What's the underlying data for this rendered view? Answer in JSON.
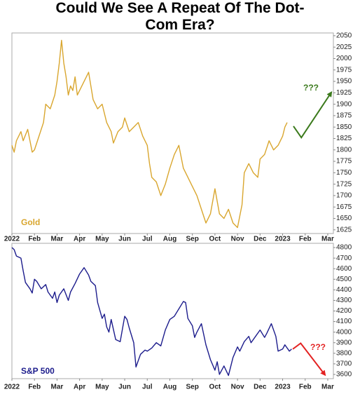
{
  "chart_data": [
    {
      "type": "line",
      "title": "Could We See A Repeat Of The Dot-Com Era?",
      "x": [
        0,
        0.1,
        0.2,
        0.4,
        0.5,
        0.7,
        0.9,
        1.0,
        1.2,
        1.4,
        1.5,
        1.7,
        1.9,
        2.0,
        2.1,
        2.2,
        2.3,
        2.4,
        2.5,
        2.6,
        2.7,
        2.8,
        2.9,
        3.0,
        3.2,
        3.4,
        3.6,
        3.8,
        4.0,
        4.2,
        4.4,
        4.5,
        4.7,
        4.9,
        5.0,
        5.2,
        5.4,
        5.6,
        5.8,
        6.0,
        6.1,
        6.2,
        6.4,
        6.6,
        6.8,
        7.0,
        7.2,
        7.4,
        7.6,
        7.8,
        8.0,
        8.2,
        8.4,
        8.6,
        8.8,
        9.0,
        9.2,
        9.4,
        9.6,
        9.8,
        10.0,
        10.2,
        10.3,
        10.5,
        10.7,
        10.9,
        11.0,
        11.2,
        11.4,
        11.6,
        11.8,
        12.0,
        12.1,
        12.2
      ],
      "series": [
        {
          "name": "Gold",
          "color": "#d9a62e",
          "values": [
            1810,
            1795,
            1820,
            1840,
            1820,
            1845,
            1795,
            1800,
            1830,
            1860,
            1900,
            1890,
            1920,
            1950,
            1990,
            2040,
            1990,
            1960,
            1920,
            1940,
            1930,
            1960,
            1920,
            1930,
            1950,
            1970,
            1910,
            1890,
            1900,
            1860,
            1840,
            1815,
            1840,
            1850,
            1870,
            1840,
            1850,
            1860,
            1830,
            1810,
            1770,
            1740,
            1730,
            1700,
            1725,
            1760,
            1790,
            1810,
            1760,
            1740,
            1720,
            1700,
            1670,
            1640,
            1660,
            1715,
            1660,
            1650,
            1670,
            1640,
            1630,
            1680,
            1750,
            1770,
            1750,
            1740,
            1780,
            1790,
            1820,
            1800,
            1810,
            1830,
            1850,
            1860
          ]
        }
      ],
      "projection": {
        "label": "???",
        "color": "#3b7a1c",
        "x": [
          12.48,
          12.83,
          14.16
        ],
        "values": [
          1852,
          1827,
          1926
        ]
      },
      "xlim": [
        0,
        14.25
      ],
      "ylim": [
        1617,
        2056
      ],
      "xticks": [
        {
          "value": 0,
          "label": "2022"
        },
        {
          "value": 1,
          "label": "Feb"
        },
        {
          "value": 2,
          "label": "Mar"
        },
        {
          "value": 3,
          "label": "Apr"
        },
        {
          "value": 4,
          "label": "May"
        },
        {
          "value": 5,
          "label": "Jun"
        },
        {
          "value": 6,
          "label": "Jul"
        },
        {
          "value": 7,
          "label": "Aug"
        },
        {
          "value": 8,
          "label": "Sep"
        },
        {
          "value": 9,
          "label": "Oct"
        },
        {
          "value": 10,
          "label": "Nov"
        },
        {
          "value": 11,
          "label": "Dec"
        },
        {
          "value": 12,
          "label": "2023"
        },
        {
          "value": 13,
          "label": "Feb"
        },
        {
          "value": 14,
          "label": "Mar"
        }
      ],
      "yticks": [
        1625,
        1650,
        1675,
        1700,
        1725,
        1750,
        1775,
        1800,
        1825,
        1850,
        1875,
        1900,
        1925,
        1950,
        1975,
        2000,
        2025,
        2050
      ]
    },
    {
      "type": "line",
      "x": [
        0,
        0.1,
        0.2,
        0.4,
        0.5,
        0.6,
        0.8,
        0.9,
        1.0,
        1.1,
        1.3,
        1.5,
        1.6,
        1.8,
        1.9,
        2.0,
        2.1,
        2.3,
        2.5,
        2.6,
        2.8,
        3.0,
        3.2,
        3.4,
        3.5,
        3.7,
        3.8,
        4.0,
        4.1,
        4.2,
        4.3,
        4.4,
        4.6,
        4.8,
        5.0,
        5.1,
        5.2,
        5.4,
        5.5,
        5.7,
        5.9,
        6.0,
        6.2,
        6.4,
        6.6,
        6.8,
        7.0,
        7.2,
        7.4,
        7.6,
        7.7,
        7.8,
        8.0,
        8.1,
        8.2,
        8.4,
        8.6,
        8.8,
        9.0,
        9.1,
        9.2,
        9.4,
        9.6,
        9.8,
        10.0,
        10.1,
        10.3,
        10.5,
        10.6,
        10.8,
        11.0,
        11.2,
        11.3,
        11.5,
        11.7,
        11.8,
        12.0,
        12.1,
        12.3,
        12.4
      ],
      "series": [
        {
          "name": "S&P 500",
          "color": "#1c1c8c",
          "values": [
            4800,
            4780,
            4720,
            4700,
            4580,
            4470,
            4410,
            4370,
            4500,
            4480,
            4410,
            4450,
            4380,
            4320,
            4380,
            4280,
            4350,
            4410,
            4300,
            4380,
            4460,
            4550,
            4610,
            4540,
            4480,
            4440,
            4280,
            4130,
            4170,
            4050,
            4000,
            4120,
            3930,
            3910,
            4150,
            4120,
            4040,
            3900,
            3670,
            3790,
            3830,
            3820,
            3850,
            3900,
            3870,
            4020,
            4120,
            4150,
            4220,
            4290,
            4280,
            4130,
            4060,
            3950,
            4000,
            4080,
            3880,
            3740,
            3640,
            3720,
            3600,
            3680,
            3590,
            3760,
            3860,
            3820,
            3910,
            3960,
            3900,
            3960,
            4020,
            3950,
            3990,
            4080,
            3960,
            3820,
            3840,
            3880,
            3820,
            3840
          ]
        }
      ],
      "projection": {
        "label": "???",
        "color": "#e32222",
        "x": [
          12.45,
          12.8,
          13.88
        ],
        "values": [
          3840,
          3895,
          3595
        ]
      },
      "xlim": [
        0,
        14.25
      ],
      "ylim": [
        3560,
        4840
      ],
      "xticks": [
        {
          "value": 0,
          "label": "2022"
        },
        {
          "value": 1,
          "label": "Feb"
        },
        {
          "value": 2,
          "label": "Mar"
        },
        {
          "value": 3,
          "label": "Apr"
        },
        {
          "value": 4,
          "label": "May"
        },
        {
          "value": 5,
          "label": "Jun"
        },
        {
          "value": 6,
          "label": "Jul"
        },
        {
          "value": 7,
          "label": "Aug"
        },
        {
          "value": 8,
          "label": "Sep"
        },
        {
          "value": 9,
          "label": "Oct"
        },
        {
          "value": 10,
          "label": "Nov"
        },
        {
          "value": 11,
          "label": "Dec"
        },
        {
          "value": 12,
          "label": "2023"
        },
        {
          "value": 13,
          "label": "Feb"
        },
        {
          "value": 14,
          "label": "Mar"
        }
      ],
      "yticks": [
        3600,
        3700,
        3800,
        3900,
        4000,
        4100,
        4200,
        4300,
        4400,
        4500,
        4600,
        4700,
        4800
      ]
    }
  ]
}
